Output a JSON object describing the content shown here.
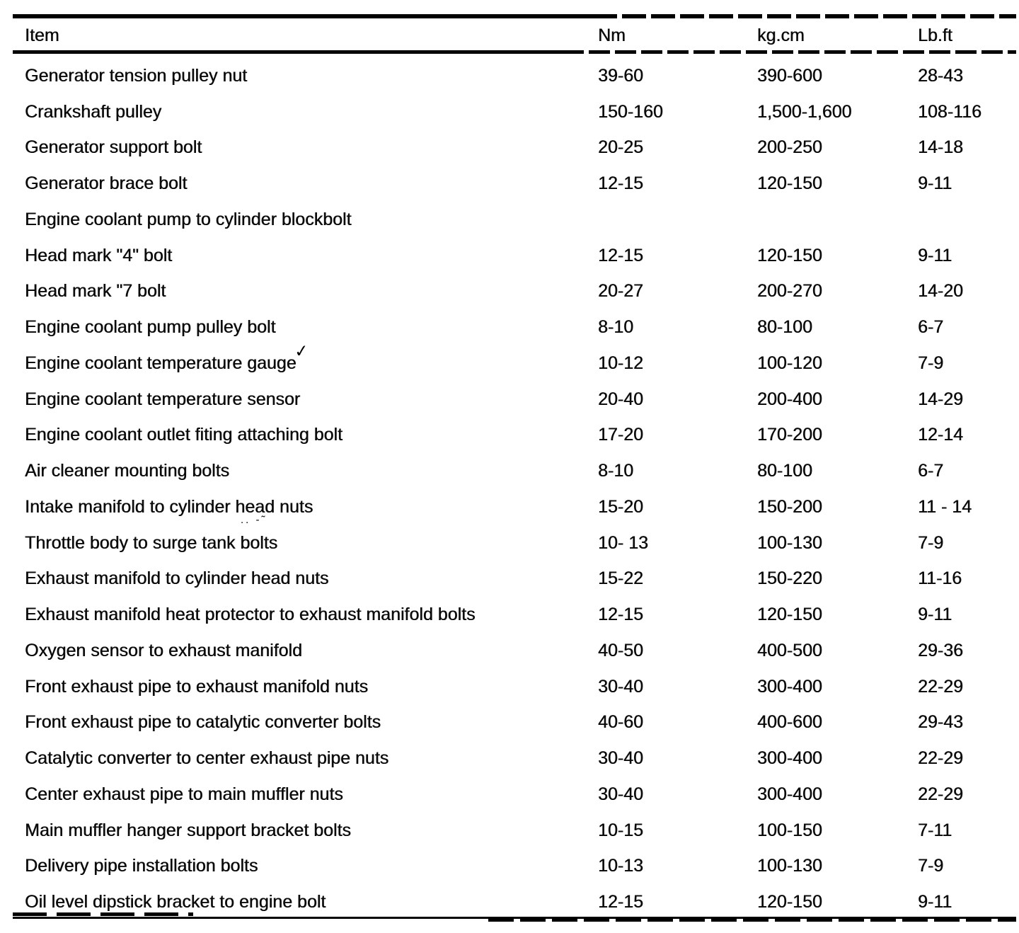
{
  "colors": {
    "ink": "#0b0b0b",
    "paper": "#ffffff"
  },
  "table": {
    "columns": [
      "Item",
      "Nm",
      "kg.cm",
      "Lb.ft"
    ],
    "rows": [
      {
        "item": "Generator tension pulley nut",
        "nm": "39-60",
        "kgcm": "390-600",
        "lbft": "28-43"
      },
      {
        "item": "Crankshaft pulley",
        "nm": "150-160",
        "kgcm": "1,500-1,600",
        "lbft": "108-116"
      },
      {
        "item": "Generator support bolt",
        "nm": "20-25",
        "kgcm": "200-250",
        "lbft": "14-18"
      },
      {
        "item": "Generator brace bolt",
        "nm": "12-15",
        "kgcm": "120-150",
        "lbft": "9-11"
      },
      {
        "item": "Engine coolant pump to cylinder blockbolt",
        "nm": "",
        "kgcm": "",
        "lbft": ""
      },
      {
        "item": "Head mark \"4\" bolt",
        "nm": "12-15",
        "kgcm": "120-150",
        "lbft": "9-11"
      },
      {
        "item": "Head mark \"7 bolt",
        "nm": "20-27",
        "kgcm": "200-270",
        "lbft": "14-20"
      },
      {
        "item": "Engine coolant pump pulley bolt",
        "nm": "8-10",
        "kgcm": "80-100",
        "lbft": "6-7"
      },
      {
        "item": "Engine coolant temperature gauge",
        "nm": "10-12",
        "kgcm": "100-120",
        "lbft": "7-9"
      },
      {
        "item": "Engine coolant temperature sensor",
        "nm": "20-40",
        "kgcm": "200-400",
        "lbft": "14-29"
      },
      {
        "item": "Engine coolant outlet fiting attaching bolt",
        "nm": "17-20",
        "kgcm": "170-200",
        "lbft": "12-14"
      },
      {
        "item": "Air cleaner mounting bolts",
        "nm": "8-10",
        "kgcm": "80-100",
        "lbft": "6-7"
      },
      {
        "item": "Intake manifold to cylinder head nuts",
        "nm": "15-20",
        "kgcm": "150-200",
        "lbft": "11 - 14"
      },
      {
        "item": "Throttle body to surge tank bolts",
        "nm": "10- 13",
        "kgcm": "100-130",
        "lbft": "7-9"
      },
      {
        "item": "Exhaust manifold to cylinder head nuts",
        "nm": "15-22",
        "kgcm": "150-220",
        "lbft": "11-16"
      },
      {
        "item": "Exhaust manifold heat protector to exhaust manifold bolts",
        "nm": "12-15",
        "kgcm": "120-150",
        "lbft": "9-11"
      },
      {
        "item": "Oxygen sensor to exhaust manifold",
        "nm": "40-50",
        "kgcm": "400-500",
        "lbft": "29-36"
      },
      {
        "item": "Front exhaust pipe to exhaust manifold nuts",
        "nm": "30-40",
        "kgcm": "300-400",
        "lbft": "22-29"
      },
      {
        "item": "Front exhaust pipe to catalytic converter bolts",
        "nm": "40-60",
        "kgcm": "400-600",
        "lbft": "29-43"
      },
      {
        "item": "Catalytic converter to center exhaust pipe nuts",
        "nm": "30-40",
        "kgcm": "300-400",
        "lbft": "22-29"
      },
      {
        "item": "Center exhaust pipe to main muffler nuts",
        "nm": "30-40",
        "kgcm": "300-400",
        "lbft": "22-29"
      },
      {
        "item": "Main muffler hanger support bracket bolts",
        "nm": "10-15",
        "kgcm": "100-150",
        "lbft": "7-11"
      },
      {
        "item": "Delivery pipe installation bolts",
        "nm": "10-13",
        "kgcm": "100-130",
        "lbft": "7-9"
      },
      {
        "item": "Oil level dipstick bracket to engine bolt",
        "nm": "12-15",
        "kgcm": "120-150",
        "lbft": "9-11"
      }
    ]
  },
  "artifacts": [
    {
      "glyph": "✓"
    },
    {
      "glyph": ".. -˜"
    }
  ]
}
